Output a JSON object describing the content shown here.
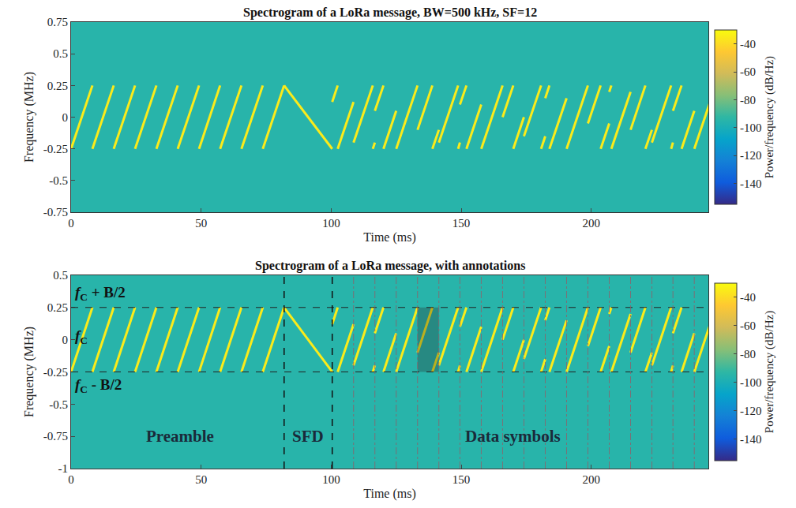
{
  "chart_data": [
    {
      "type": "heatmap",
      "title": "Spectrogram of a LoRa message, BW=500 kHz, SF=12",
      "x_label": "Time (ms)",
      "y_label": "Frequency (MHz)",
      "xlim": [
        0,
        245
      ],
      "xticks": [
        0,
        50,
        100,
        150,
        200
      ],
      "ylim": [
        -0.75,
        0.75
      ],
      "yticks": [
        0.75,
        0.5,
        0.25,
        0,
        -0.25,
        -0.5,
        -0.75
      ],
      "cells": {
        "x": [
          0,
          245
        ],
        "y": [
          -0.75,
          0.75
        ],
        "z": [
          [
            -95
          ]
        ]
      },
      "colorbar": {
        "title": "Power/frequency (dB/Hz)",
        "range": [
          -155,
          -30
        ],
        "ticks": [
          -40,
          -60,
          -80,
          -100,
          -120,
          -140
        ]
      },
      "series": [
        {
          "power": -35,
          "x": [
            0,
            8.2,
            null,
            8.2,
            16.4,
            null,
            16.4,
            24.6,
            null,
            24.6,
            32.8,
            null,
            32.8,
            41.0,
            null,
            41.0,
            49.2,
            null,
            49.2,
            57.3,
            null,
            57.3,
            65.5,
            null,
            65.5,
            73.7,
            null,
            73.7,
            81.9,
            null,
            81.9,
            100.4,
            null,
            100.4,
            102.5,
            null,
            102.5,
            108.6,
            null,
            108.6,
            116.0,
            null,
            116.0,
            116.8,
            null,
            116.8,
            120.1,
            null,
            120.1,
            125.0,
            null,
            125.0,
            133.2,
            null,
            133.2,
            138.9,
            null,
            138.9,
            141.4,
            null,
            141.4,
            148.8,
            null,
            148.8,
            149.5,
            null,
            149.5,
            152.0,
            null,
            152.0,
            157.7,
            null,
            157.7,
            165.9,
            null,
            165.9,
            170.0,
            null,
            170.0,
            174.1,
            null,
            174.1,
            180.7,
            null,
            180.7,
            182.3,
            null,
            182.3,
            183.9,
            null,
            183.9,
            190.5,
            null,
            190.5,
            198.7,
            null,
            198.7,
            203.6,
            null,
            203.6,
            206.9,
            null,
            206.9,
            207.7,
            null,
            207.7,
            215.1,
            null,
            215.1,
            220.8,
            null,
            220.8,
            223.3,
            null,
            223.3,
            230.7,
            null,
            230.7,
            231.4,
            null,
            231.4,
            234.7,
            null,
            234.7,
            239.6,
            null,
            239.6,
            247.8
          ],
          "y": [
            -0.25,
            0.25,
            null,
            -0.25,
            0.25,
            null,
            -0.25,
            0.25,
            null,
            -0.25,
            0.25,
            null,
            -0.25,
            0.25,
            null,
            -0.25,
            0.25,
            null,
            -0.25,
            0.25,
            null,
            -0.25,
            0.25,
            null,
            -0.25,
            0.25,
            null,
            -0.25,
            0.25,
            null,
            0.25,
            -0.25,
            null,
            0.12,
            0.25,
            null,
            -0.25,
            0.12,
            null,
            -0.2,
            0.25,
            null,
            -0.25,
            -0.2,
            null,
            0.05,
            0.25,
            null,
            -0.25,
            0.05,
            null,
            -0.25,
            0.25,
            null,
            -0.1,
            0.25,
            null,
            -0.25,
            -0.1,
            null,
            -0.2,
            0.25,
            null,
            -0.25,
            -0.2,
            null,
            0.1,
            0.25,
            null,
            -0.25,
            0.1,
            null,
            -0.25,
            0.25,
            null,
            0,
            0.25,
            null,
            -0.25,
            0,
            null,
            -0.15,
            0.25,
            null,
            -0.25,
            -0.15,
            null,
            0.15,
            0.25,
            null,
            -0.25,
            0.15,
            null,
            -0.25,
            0.25,
            null,
            -0.05,
            0.25,
            null,
            -0.25,
            -0.05,
            null,
            0.2,
            0.25,
            null,
            -0.25,
            0.2,
            null,
            -0.1,
            0.25,
            null,
            -0.25,
            -0.1,
            null,
            -0.2,
            0.25,
            null,
            -0.25,
            -0.2,
            null,
            0.05,
            0.25,
            null,
            -0.25,
            0.05,
            null,
            -0.25,
            0.25
          ]
        }
      ]
    },
    {
      "type": "heatmap",
      "title": "Spectrogram of a LoRa message, with annotations",
      "x_label": "Time (ms)",
      "y_label": "Frequency (MHz)",
      "xlim": [
        0,
        245
      ],
      "xticks": [
        0,
        50,
        100,
        150,
        200
      ],
      "ylim": [
        -1,
        0.5
      ],
      "yticks": [
        0.5,
        0.25,
        0,
        -0.25,
        -0.5,
        -0.75,
        -1
      ],
      "cells": {
        "x": [
          0,
          245
        ],
        "y": [
          -1,
          0.5
        ],
        "z": [
          [
            -95
          ]
        ]
      },
      "colorbar": {
        "title": "Power/frequency (dB/Hz)",
        "range": [
          -155,
          -30
        ],
        "ticks": [
          -40,
          -60,
          -80,
          -100,
          -120,
          -140
        ]
      },
      "series": [
        {
          "power": -35,
          "x": [
            0,
            8.2,
            null,
            8.2,
            16.4,
            null,
            16.4,
            24.6,
            null,
            24.6,
            32.8,
            null,
            32.8,
            41.0,
            null,
            41.0,
            49.2,
            null,
            49.2,
            57.3,
            null,
            57.3,
            65.5,
            null,
            65.5,
            73.7,
            null,
            73.7,
            81.9,
            null,
            81.9,
            100.4,
            null,
            100.4,
            102.5,
            null,
            102.5,
            108.6,
            null,
            108.6,
            116.0,
            null,
            116.0,
            116.8,
            null,
            116.8,
            120.1,
            null,
            120.1,
            125.0,
            null,
            125.0,
            133.2,
            null,
            133.2,
            138.9,
            null,
            138.9,
            141.4,
            null,
            141.4,
            148.8,
            null,
            148.8,
            149.5,
            null,
            149.5,
            152.0,
            null,
            152.0,
            157.7,
            null,
            157.7,
            165.9,
            null,
            165.9,
            170.0,
            null,
            170.0,
            174.1,
            null,
            174.1,
            180.7,
            null,
            180.7,
            182.3,
            null,
            182.3,
            183.9,
            null,
            183.9,
            190.5,
            null,
            190.5,
            198.7,
            null,
            198.7,
            203.6,
            null,
            203.6,
            206.9,
            null,
            206.9,
            207.7,
            null,
            207.7,
            215.1,
            null,
            215.1,
            220.8,
            null,
            220.8,
            223.3,
            null,
            223.3,
            230.7,
            null,
            230.7,
            231.4,
            null,
            231.4,
            234.7,
            null,
            234.7,
            239.6,
            null,
            239.6,
            247.8
          ],
          "y": [
            -0.25,
            0.25,
            null,
            -0.25,
            0.25,
            null,
            -0.25,
            0.25,
            null,
            -0.25,
            0.25,
            null,
            -0.25,
            0.25,
            null,
            -0.25,
            0.25,
            null,
            -0.25,
            0.25,
            null,
            -0.25,
            0.25,
            null,
            -0.25,
            0.25,
            null,
            -0.25,
            0.25,
            null,
            0.25,
            -0.25,
            null,
            0.12,
            0.25,
            null,
            -0.25,
            0.12,
            null,
            -0.2,
            0.25,
            null,
            -0.25,
            -0.2,
            null,
            0.05,
            0.25,
            null,
            -0.25,
            0.05,
            null,
            -0.25,
            0.25,
            null,
            -0.1,
            0.25,
            null,
            -0.25,
            -0.1,
            null,
            -0.2,
            0.25,
            null,
            -0.25,
            -0.2,
            null,
            0.1,
            0.25,
            null,
            -0.25,
            0.1,
            null,
            -0.25,
            0.25,
            null,
            0,
            0.25,
            null,
            -0.25,
            0,
            null,
            -0.15,
            0.25,
            null,
            -0.25,
            -0.15,
            null,
            0.15,
            0.25,
            null,
            -0.25,
            0.15,
            null,
            -0.25,
            0.25,
            null,
            -0.05,
            0.25,
            null,
            -0.25,
            -0.05,
            null,
            0.2,
            0.25,
            null,
            -0.25,
            0.2,
            null,
            -0.1,
            0.25,
            null,
            -0.25,
            -0.1,
            null,
            -0.2,
            0.25,
            null,
            -0.25,
            -0.2,
            null,
            0.05,
            0.25,
            null,
            -0.25,
            0.05,
            null,
            -0.25,
            0.25
          ]
        }
      ],
      "hlines": [
        0.25,
        -0.25
      ],
      "sections": [
        81.9,
        100.4
      ],
      "symbol_boundaries": [
        108.6,
        116.8,
        125.0,
        133.2,
        141.4,
        149.5,
        157.7,
        165.9,
        174.1,
        182.3,
        190.5,
        198.7,
        206.9,
        215.1,
        223.3,
        231.4,
        239.6
      ],
      "highlight": {
        "x": [
          133.2,
          141.4
        ],
        "y": [
          -0.25,
          0.25
        ]
      },
      "level_labels": [
        {
          "text": "f",
          "sub": "C",
          "rest": " + B/2",
          "x": 1,
          "y": 0.36
        },
        {
          "text": "f",
          "sub": "C",
          "rest": "",
          "x": 1,
          "y": 0.02
        },
        {
          "text": "f",
          "sub": "C",
          "rest": " - B/2",
          "x": 1,
          "y": -0.36
        }
      ],
      "regions": [
        {
          "text": "Preamble",
          "x": 42,
          "y": -0.75
        },
        {
          "text": "SFD",
          "x": 91,
          "y": -0.75
        },
        {
          "text": "Data symbols",
          "x": 170,
          "y": -0.75
        }
      ]
    }
  ]
}
